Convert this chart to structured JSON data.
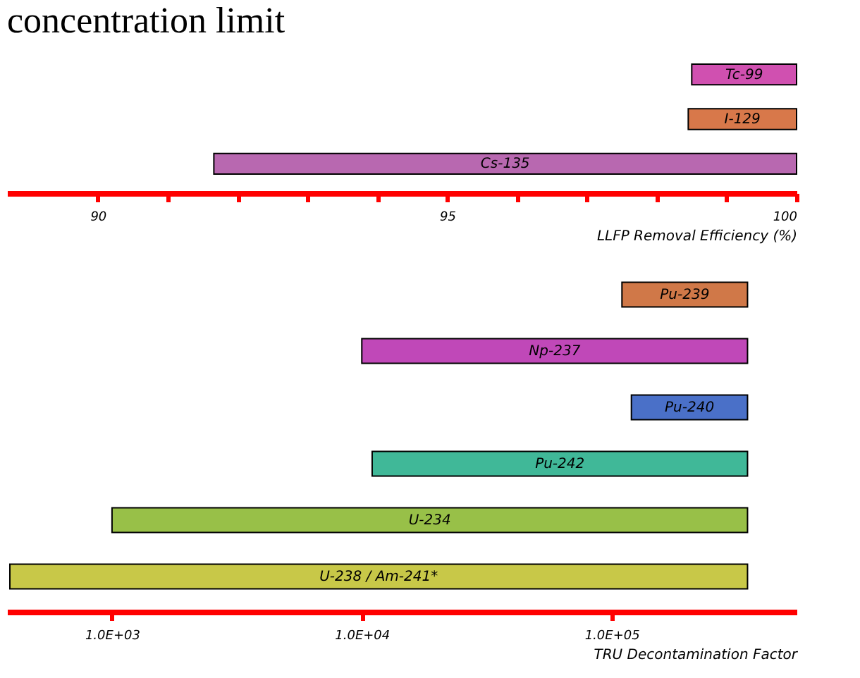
{
  "chart_data": [
    {
      "type": "bar",
      "title": "concentration limit",
      "orientation": "horizontal",
      "xlabel": "LLFP Removal Efficiency (%)",
      "categories": [
        "Tc-99",
        "I-129",
        "Cs-135"
      ],
      "base": [
        98.5,
        98.45,
        91.66
      ],
      "values": [
        1.5,
        1.55,
        8.34
      ],
      "colors": [
        "#d050b0",
        "#d8784a",
        "#b868b0"
      ],
      "xlim": [
        88.7,
        100
      ],
      "xticks": [
        90,
        {
          "value": 91,
          "label": null
        },
        {
          "value": 92,
          "label": null
        },
        {
          "value": 93,
          "label": null
        },
        {
          "value": 94,
          "label": null
        },
        95,
        {
          "value": 96,
          "label": null
        },
        {
          "value": 97,
          "label": null
        },
        {
          "value": 98,
          "label": null
        },
        {
          "value": 99,
          "label": null
        },
        100
      ],
      "grid": false
    },
    {
      "type": "bar",
      "orientation": "horizontal",
      "log": "x",
      "xlabel": "TRU Decontamination Factor",
      "categories": [
        "Pu-239",
        "Np-237",
        "Pu-240",
        "Pu-242",
        "U-234",
        "U-238 / Am-241*"
      ],
      "base": [
        110000,
        10000,
        120000,
        11000,
        1000,
        390
      ],
      "values": [
        240000,
        340000,
        230000,
        339000,
        349000,
        349610
      ],
      "colors": [
        "#d07848",
        "#c048b8",
        "#4a70c8",
        "#40b898",
        "#98c048",
        "#c8c848"
      ],
      "xlim": [
        380,
        550000
      ],
      "xticks": [
        {
          "value": 1000,
          "label": "1.0E+03"
        },
        {
          "value": 10000,
          "label": "1.0E+04"
        },
        {
          "value": 100000,
          "label": "1.0E+05"
        }
      ],
      "grid": false
    }
  ]
}
